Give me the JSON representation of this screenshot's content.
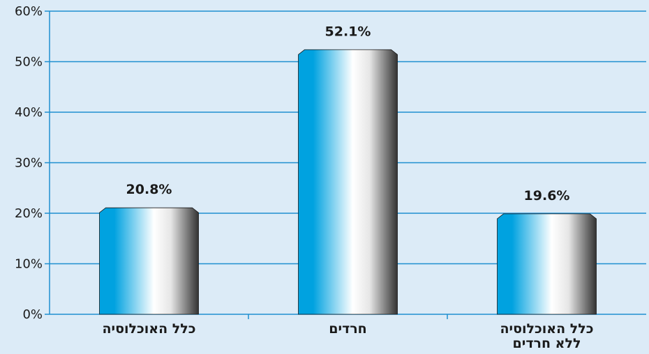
{
  "chart_data": {
    "type": "bar",
    "categories": [
      [
        "כלל האוכלוסיה"
      ],
      [
        "חרדים"
      ],
      [
        "כלל האוכלוסיה",
        "ללא חרדים"
      ]
    ],
    "values": [
      20.8,
      52.1,
      19.6
    ],
    "data_labels": [
      "20.8%",
      "52.1%",
      "19.6%"
    ],
    "yticks": [
      "0%",
      "10%",
      "20%",
      "30%",
      "40%",
      "50%",
      "60%"
    ],
    "ylim": [
      0,
      60
    ],
    "grid": true,
    "colors": {
      "background": "#dcebf7",
      "gridline": "#1f8fd0",
      "axis": "#1f8fd0",
      "bar_left": "#00a2e0",
      "bar_mid": "#ffffff",
      "bar_right": "#333333"
    }
  }
}
